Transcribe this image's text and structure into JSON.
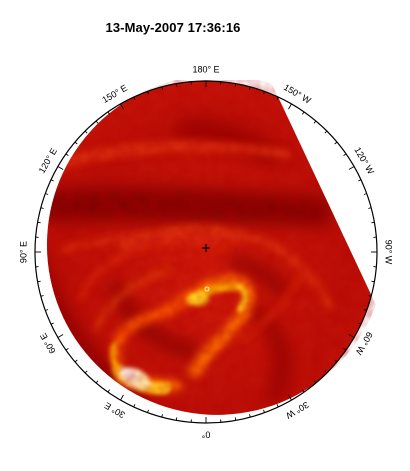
{
  "title": "13-May-2007 17:36:16",
  "longitude_labels": [
    {
      "text": "180° E",
      "deg": 0
    },
    {
      "text": "150° W",
      "deg": 30
    },
    {
      "text": "120° W",
      "deg": 60
    },
    {
      "text": "90° W",
      "deg": 90
    },
    {
      "text": "60° W",
      "deg": 120
    },
    {
      "text": "30° W",
      "deg": 150
    },
    {
      "text": "0°",
      "deg": 180
    },
    {
      "text": "30° E",
      "deg": 210
    },
    {
      "text": "60° E",
      "deg": 240
    },
    {
      "text": "90° E",
      "deg": 270
    },
    {
      "text": "120° E",
      "deg": 300
    },
    {
      "text": "150° E",
      "deg": 330
    }
  ],
  "colors": {
    "disk_base": "#c21008",
    "dark_band": "#800000",
    "hot_orange": "#ff7a00",
    "hot_yellow": "#ffd21a",
    "hot_white": "#fffbe8",
    "rim": "#000000"
  }
}
